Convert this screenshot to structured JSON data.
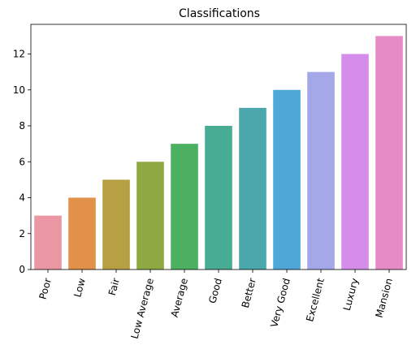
{
  "chart_data": {
    "type": "bar",
    "title": "Classifications",
    "xlabel": "",
    "ylabel": "",
    "categories": [
      "Poor",
      "Low",
      "Fair",
      "Low Average",
      "Average",
      "Good",
      "Better",
      "Very Good",
      "Excellent",
      "Luxury",
      "Mansion"
    ],
    "values": [
      3,
      4,
      5,
      6,
      7,
      8,
      9,
      10,
      11,
      12,
      13
    ],
    "colors": [
      "#ea96a3",
      "#e1914a",
      "#b7a044",
      "#8ea842",
      "#4bb062",
      "#48ab94",
      "#4aa8ac",
      "#4ea7d6",
      "#a4a8e9",
      "#d48eea",
      "#e68bc6"
    ],
    "ylim": [
      0,
      13.65
    ],
    "yticks": [
      0,
      2,
      4,
      6,
      8,
      10,
      12
    ],
    "grid": false,
    "legend": "none"
  }
}
